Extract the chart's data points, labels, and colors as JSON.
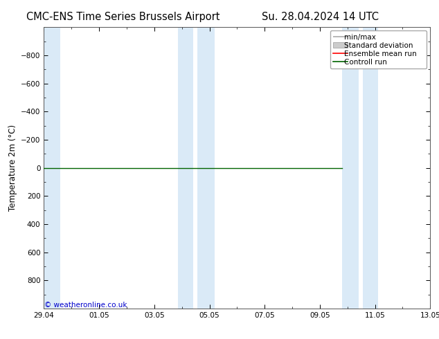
{
  "title_left": "CMC-ENS Time Series Brussels Airport",
  "title_right": "Su. 28.04.2024 14 UTC",
  "ylabel": "Temperature 2m (°C)",
  "ylim_min": -1000,
  "ylim_max": 1000,
  "yticks": [
    -800,
    -600,
    -400,
    -200,
    0,
    200,
    400,
    600,
    800
  ],
  "background_color": "#ffffff",
  "plot_bg_color": "#ffffff",
  "band_color": "#daeaf7",
  "x_tick_labels": [
    "29.04",
    "01.05",
    "03.05",
    "05.05",
    "07.05",
    "09.05",
    "11.05",
    "13.05"
  ],
  "x_tick_positions": [
    0,
    2,
    4,
    6,
    8,
    10,
    12,
    14
  ],
  "blue_band_positions": [
    [
      0,
      0.6
    ],
    [
      4.85,
      5.4
    ],
    [
      5.55,
      6.2
    ],
    [
      10.8,
      11.4
    ],
    [
      11.55,
      12.1
    ]
  ],
  "control_run_y": 0,
  "control_run_x_end": 10.8,
  "control_run_color": "#006400",
  "ensemble_mean_color": "#ff0000",
  "minmax_color": "#aaaaaa",
  "std_dev_color": "#cccccc",
  "watermark": "© weatheronline.co.uk",
  "watermark_color": "#0000cc",
  "legend_labels": [
    "min/max",
    "Standard deviation",
    "Ensemble mean run",
    "Controll run"
  ],
  "legend_colors": [
    "#aaaaaa",
    "#cccccc",
    "#ff0000",
    "#006400"
  ],
  "title_fontsize": 10.5,
  "axis_fontsize": 8.5,
  "tick_fontsize": 7.5,
  "legend_fontsize": 7.5
}
